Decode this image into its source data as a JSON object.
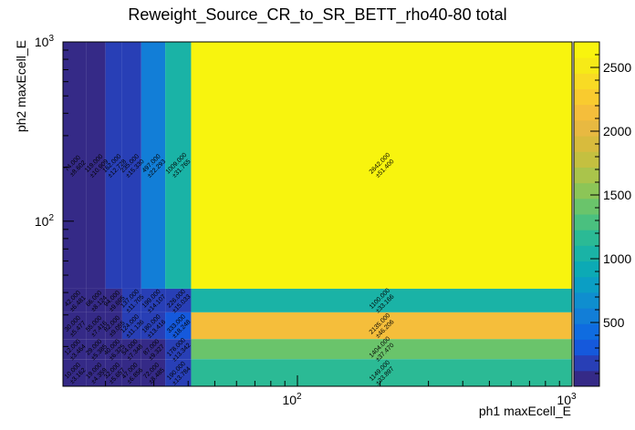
{
  "chart_data": {
    "type": "heatmap",
    "title": "Reweight_Source_CR_to_SR_BETT_rho40-80 total",
    "xlabel": "ph1 maxEcell_E",
    "ylabel": "ph2 maxEcell_E",
    "x_scale": "log",
    "y_scale": "log",
    "xlim": [
      14,
      1000
    ],
    "ylim": [
      12,
      1000
    ],
    "x_tick_labels": [
      "10^2",
      "10^3"
    ],
    "y_tick_labels": [
      "10^2",
      "10^3"
    ],
    "x_bins": [
      {
        "lo": 14,
        "hi": 17
      },
      {
        "lo": 17,
        "hi": 20
      },
      {
        "lo": 20,
        "hi": 23
      },
      {
        "lo": 23,
        "hi": 27
      },
      {
        "lo": 27,
        "hi": 33
      },
      {
        "lo": 33,
        "hi": 41
      },
      {
        "lo": 41,
        "hi": 1000
      }
    ],
    "y_bins": [
      {
        "lo": 12,
        "hi": 17
      },
      {
        "lo": 17,
        "hi": 22
      },
      {
        "lo": 22,
        "hi": 31
      },
      {
        "lo": 31,
        "hi": 42
      },
      {
        "lo": 42,
        "hi": 1000
      }
    ],
    "cells": [
      {
        "xi": 0,
        "yi": 4,
        "v": "74.000",
        "e": "±8.602",
        "z": 74
      },
      {
        "xi": 1,
        "yi": 4,
        "v": "119.000",
        "e": "±10.909",
        "z": 119
      },
      {
        "xi": 2,
        "yi": 4,
        "v": "162.000",
        "e": "±12.728",
        "z": 162
      },
      {
        "xi": 3,
        "yi": 4,
        "v": "235.000",
        "e": "±15.330",
        "z": 235
      },
      {
        "xi": 4,
        "yi": 4,
        "v": "497.000",
        "e": "±22.293",
        "z": 497
      },
      {
        "xi": 5,
        "yi": 4,
        "v": "1009.000",
        "e": "±31.765",
        "z": 1009
      },
      {
        "xi": 6,
        "yi": 4,
        "v": "2642.000",
        "e": "±51.400",
        "z": 2642
      },
      {
        "xi": 0,
        "yi": 3,
        "v": "42.000",
        "e": "±6.481",
        "z": 42
      },
      {
        "xi": 1,
        "yi": 3,
        "v": "66.000",
        "e": "±8.124",
        "z": 66
      },
      {
        "xi": 2,
        "yi": 3,
        "v": "94.000",
        "e": "±9.695",
        "z": 94
      },
      {
        "xi": 3,
        "yi": 3,
        "v": "137.000",
        "e": "±11.705",
        "z": 137
      },
      {
        "xi": 4,
        "yi": 3,
        "v": "199.000",
        "e": "±14.107",
        "z": 199
      },
      {
        "xi": 5,
        "yi": 3,
        "v": "226.000",
        "e": "±15.033",
        "z": 226
      },
      {
        "xi": 6,
        "yi": 3,
        "v": "1100.000",
        "e": "±33.166",
        "z": 1100
      },
      {
        "xi": 0,
        "yi": 2,
        "v": "30.000",
        "e": "±5.477",
        "z": 30
      },
      {
        "xi": 1,
        "yi": 2,
        "v": "55.000",
        "e": "±7.416",
        "z": 55
      },
      {
        "xi": 2,
        "yi": 2,
        "v": "82.000",
        "e": "±9.055",
        "z": 82
      },
      {
        "xi": 3,
        "yi": 2,
        "v": "124.000",
        "e": "±11.136",
        "z": 124
      },
      {
        "xi": 4,
        "yi": 2,
        "v": "180.000",
        "e": "±13.416",
        "z": 180
      },
      {
        "xi": 5,
        "yi": 2,
        "v": "333.000",
        "e": "±18.248",
        "z": 333
      },
      {
        "xi": 6,
        "yi": 2,
        "v": "2135.000",
        "e": "±46.206",
        "z": 2135
      },
      {
        "xi": 0,
        "yi": 1,
        "v": "12.000",
        "e": "±3.464",
        "z": 12
      },
      {
        "xi": 1,
        "yi": 1,
        "v": "29.000",
        "e": "±5.385",
        "z": 29
      },
      {
        "xi": 2,
        "yi": 1,
        "v": "40.000",
        "e": "±6.325",
        "z": 40
      },
      {
        "xi": 3,
        "yi": 1,
        "v": "54.000",
        "e": "±7.348",
        "z": 54
      },
      {
        "xi": 4,
        "yi": 1,
        "v": "87.000",
        "e": "±9.327",
        "z": 87
      },
      {
        "xi": 5,
        "yi": 1,
        "v": "178.000",
        "e": "±13.342",
        "z": 178
      },
      {
        "xi": 6,
        "yi": 1,
        "v": "1404.000",
        "e": "±37.470",
        "z": 1404
      },
      {
        "xi": 0,
        "yi": 0,
        "v": "10.000",
        "e": "±3.162",
        "z": 10
      },
      {
        "xi": 1,
        "yi": 0,
        "v": "19.000",
        "e": "±4.359",
        "z": 19
      },
      {
        "xi": 2,
        "yi": 0,
        "v": "32.000",
        "e": "±5.657",
        "z": 32
      },
      {
        "xi": 3,
        "yi": 0,
        "v": "47.000",
        "e": "±6.856",
        "z": 47
      },
      {
        "xi": 4,
        "yi": 0,
        "v": "72.000",
        "e": "±8.485",
        "z": 72
      },
      {
        "xi": 5,
        "yi": 0,
        "v": "190.000",
        "e": "±13.784",
        "z": 190
      },
      {
        "xi": 6,
        "yi": 0,
        "v": "1149.000",
        "e": "±33.897",
        "z": 1149
      }
    ],
    "zlim": [
      0,
      2700
    ],
    "colorbar_ticks": [
      "500",
      "1000",
      "1500",
      "2000",
      "2500"
    ],
    "palette": [
      "#352a87",
      "#283fb6",
      "#1559dc",
      "#0f6ce0",
      "#127ed7",
      "#0f8ecf",
      "#0b9ec4",
      "#0caab5",
      "#1ab3a6",
      "#2bba95",
      "#4ac07f",
      "#6ac46b",
      "#8cc557",
      "#aac44b",
      "#c4c040",
      "#d8bb3d",
      "#e8b941",
      "#f5be3b",
      "#f9cb2f",
      "#f8db24",
      "#f6ea17",
      "#f8f40e"
    ]
  }
}
